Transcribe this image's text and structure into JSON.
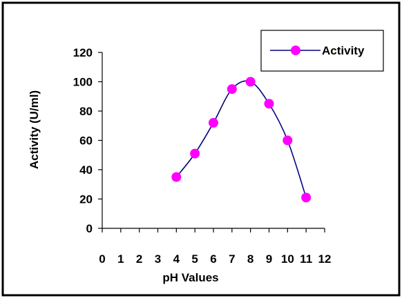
{
  "chart_data": {
    "type": "line",
    "title": "",
    "xlabel": "pH Values",
    "ylabel": "Activity (U/ml)",
    "xlim": [
      0,
      12
    ],
    "ylim": [
      0,
      120
    ],
    "x_ticks": [
      "0",
      "1",
      "2",
      "3",
      "4",
      "5",
      "6",
      "7",
      "8",
      "9",
      "10",
      "11",
      "12"
    ],
    "y_ticks": [
      "0",
      "20",
      "40",
      "60",
      "80",
      "100",
      "120"
    ],
    "grid": false,
    "legend_position": "top-right",
    "series": [
      {
        "name": "Activity",
        "color": "#ff00ff",
        "line_color": "#000080",
        "smooth": true,
        "x": [
          4,
          5,
          6,
          7,
          8,
          9,
          10,
          11
        ],
        "y": [
          35,
          51,
          72,
          95,
          100,
          85,
          60,
          21
        ]
      }
    ]
  }
}
